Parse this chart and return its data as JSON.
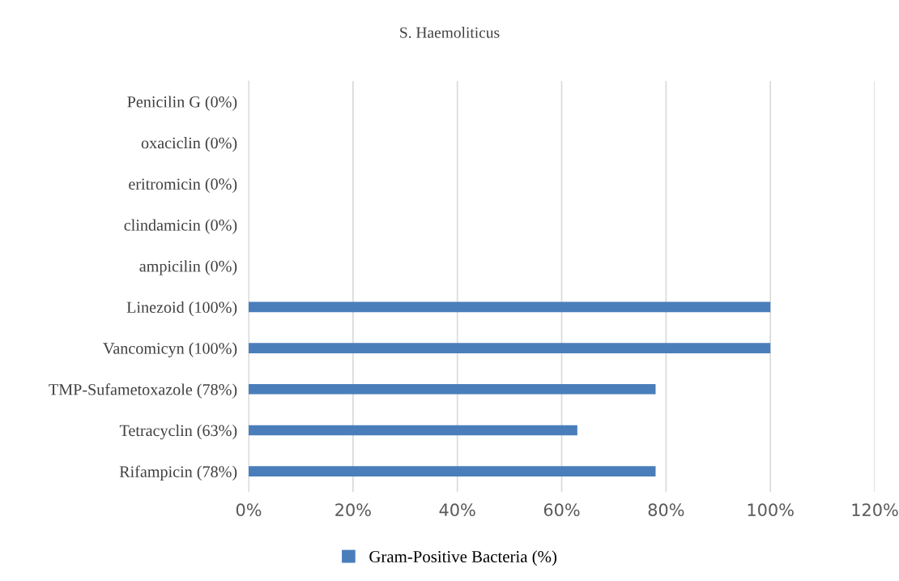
{
  "chart_data": {
    "type": "bar",
    "orientation": "horizontal",
    "title": "S. Haemoliticus",
    "categories": [
      "Penicilin G (0%)",
      "oxaciclin (0%)",
      "eritromicin (0%)",
      "clindamicin (0%)",
      "ampicilin (0%)",
      "Linezoid (100%)",
      "Vancomicyn (100%)",
      "TMP-Sufametoxazole (78%)",
      "Tetracyclin (63%)",
      "Rifampicin (78%)"
    ],
    "series": [
      {
        "name": "Gram-Positive Bacteria (%)",
        "color": "#4a7ebb",
        "values": [
          0,
          0,
          0,
          0,
          0,
          100,
          100,
          78,
          63,
          78
        ]
      }
    ],
    "xlim": [
      0,
      120
    ],
    "xticks": [
      {
        "value": 0,
        "label": "0%"
      },
      {
        "value": 20,
        "label": "20%"
      },
      {
        "value": 40,
        "label": "40%"
      },
      {
        "value": 60,
        "label": "60%"
      },
      {
        "value": 80,
        "label": "80%"
      },
      {
        "value": 100,
        "label": "100%"
      },
      {
        "value": 120,
        "label": "120%"
      }
    ],
    "grid": "x",
    "legend": "bottom"
  }
}
